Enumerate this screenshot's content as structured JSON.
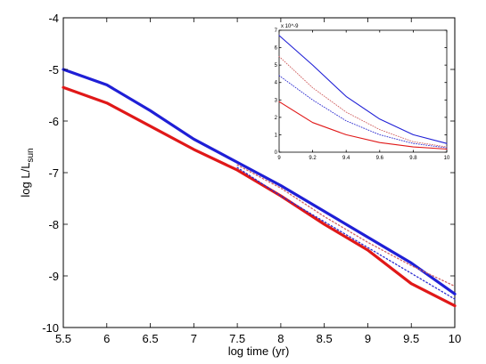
{
  "chart_data": [
    {
      "type": "line",
      "xlabel": "log time (yr)",
      "ylabel_main": "log L/L",
      "ylabel_sub": "sun",
      "xlim": [
        5.5,
        10
      ],
      "ylim": [
        -10,
        -4
      ],
      "xticks": [
        "5.5",
        "6",
        "6.5",
        "7",
        "7.5",
        "8",
        "8.5",
        "9",
        "9.5",
        "10"
      ],
      "yticks": [
        "-10",
        "-9",
        "-8",
        "-7",
        "-6",
        "-5",
        "-4"
      ],
      "grid": false,
      "series": [
        {
          "style": "solid-thick",
          "color": "#1f1fd6",
          "x": [
            5.5,
            6.0,
            6.5,
            7.0,
            7.5,
            8.0,
            8.5,
            9.0,
            9.5,
            10.0
          ],
          "y": [
            -5.0,
            -5.3,
            -5.8,
            -6.35,
            -6.8,
            -7.25,
            -7.75,
            -8.25,
            -8.75,
            -9.35
          ]
        },
        {
          "style": "solid-thick",
          "color": "#e01818",
          "x": [
            5.5,
            6.0,
            6.5,
            7.0,
            7.5,
            8.0,
            8.5,
            9.0,
            9.5,
            10.0
          ],
          "y": [
            -5.35,
            -5.65,
            -6.1,
            -6.55,
            -6.95,
            -7.45,
            -8.0,
            -8.5,
            -9.15,
            -9.58
          ]
        },
        {
          "style": "dotted",
          "color": "#2a2ad0",
          "x": [
            7.5,
            8.0,
            8.5,
            9.0,
            9.5,
            10.0
          ],
          "y": [
            -6.9,
            -7.45,
            -7.95,
            -8.45,
            -8.95,
            -9.45
          ]
        },
        {
          "style": "dotted",
          "color": "#d06060",
          "x": [
            7.5,
            8.0,
            8.5,
            9.0,
            9.5,
            10.0
          ],
          "y": [
            -6.85,
            -7.3,
            -7.85,
            -8.35,
            -8.8,
            -9.2
          ]
        }
      ]
    },
    {
      "type": "line",
      "role": "inset",
      "xlim": [
        9,
        10
      ],
      "ylim": [
        0,
        7
      ],
      "xticks": [
        "9",
        "9.2",
        "9.4",
        "9.6",
        "9.8",
        "10"
      ],
      "yticks": [
        "0",
        "1",
        "2",
        "3",
        "4",
        "5",
        "6",
        "7"
      ],
      "y_multiplier": "x 10^-9",
      "series": [
        {
          "style": "solid",
          "color": "#1f1fd6",
          "x": [
            9.0,
            9.2,
            9.4,
            9.6,
            9.8,
            10.0
          ],
          "y": [
            6.7,
            5.0,
            3.2,
            1.9,
            1.0,
            0.5
          ]
        },
        {
          "style": "dotted",
          "color": "#d06060",
          "x": [
            9.0,
            9.2,
            9.4,
            9.6,
            9.8,
            10.0
          ],
          "y": [
            5.5,
            3.7,
            2.3,
            1.3,
            0.6,
            0.3
          ]
        },
        {
          "style": "dotted",
          "color": "#2a2ad0",
          "x": [
            9.0,
            9.2,
            9.4,
            9.6,
            9.8,
            10.0
          ],
          "y": [
            4.4,
            3.0,
            1.8,
            1.0,
            0.5,
            0.25
          ]
        },
        {
          "style": "solid",
          "color": "#e01818",
          "x": [
            9.0,
            9.2,
            9.4,
            9.6,
            9.8,
            10.0
          ],
          "y": [
            2.9,
            1.7,
            1.0,
            0.55,
            0.3,
            0.18
          ]
        }
      ]
    }
  ]
}
